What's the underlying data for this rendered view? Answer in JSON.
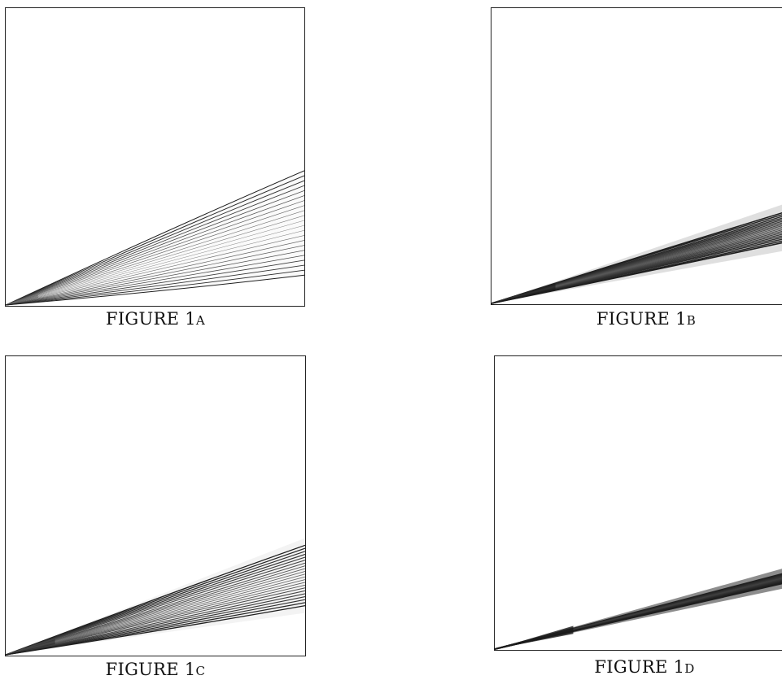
{
  "figures": [
    {
      "id": "1a",
      "caption": "FIGURE 1a",
      "upper_slope": 0.45,
      "lower_slope": 0.1,
      "line_count": 22,
      "tightness": 0.0
    },
    {
      "id": "1b",
      "caption": "FIGURE 1b",
      "upper_slope": 0.34,
      "lower_slope": 0.18,
      "line_count": 20,
      "tightness": 0.65
    },
    {
      "id": "1c",
      "caption": "FIGURE 1c",
      "upper_slope": 0.39,
      "lower_slope": 0.14,
      "line_count": 22,
      "tightness": 0.35
    },
    {
      "id": "1d",
      "caption": "FIGURE 1d",
      "upper_slope": 0.28,
      "lower_slope": 0.21,
      "line_count": 26,
      "tightness": 0.95
    }
  ]
}
